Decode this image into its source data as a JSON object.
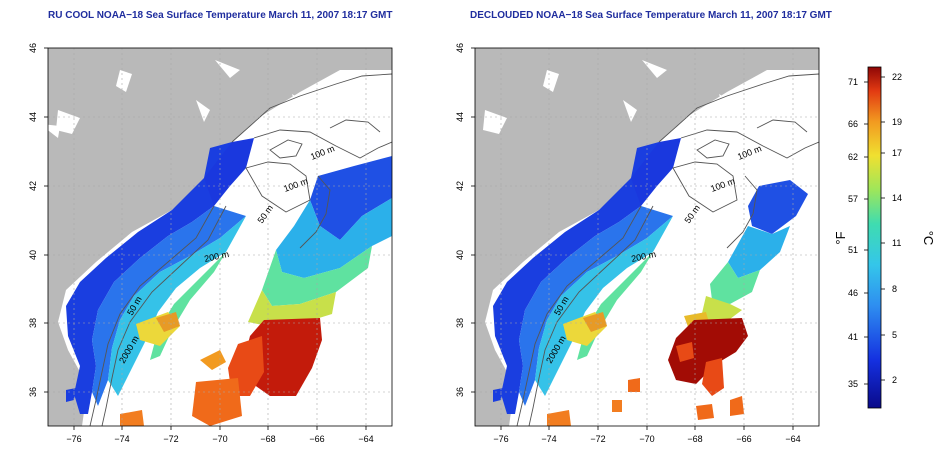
{
  "titles": {
    "left": "RU COOL NOAA−18 Sea Surface Temperature March 11, 2007 18:17 GMT",
    "right": "DECLOUDED NOAA−18 Sea Surface Temperature March 11, 2007 18:17 GMT"
  },
  "axes": {
    "x_ticks": [
      "−76",
      "−74",
      "−72",
      "−70",
      "−68",
      "−66",
      "−64"
    ],
    "y_ticks": [
      "36",
      "38",
      "40",
      "42",
      "44",
      "46"
    ]
  },
  "contours": {
    "left": [
      "100 m",
      "100 m",
      "50 m",
      "200 m",
      "50 m",
      "2000 m"
    ],
    "right": [
      "100 m",
      "100 m",
      "50 m",
      "200 m",
      "50 m",
      "2000 m"
    ]
  },
  "colorbar": {
    "fahrenheit_label": "°F",
    "celsius_label": "°C",
    "fahrenheit_ticks": [
      "71",
      "66",
      "62",
      "57",
      "51",
      "46",
      "41",
      "35"
    ],
    "celsius_ticks": [
      "22",
      "19",
      "17",
      "14",
      "11",
      "8",
      "5",
      "2"
    ]
  },
  "colors": {
    "land": "#b9b9b9",
    "cold": "#1426d8",
    "cool": "#3aa9ec",
    "mid": "#3fdcb0",
    "warm": "#e8e23a",
    "hot": "#ee5a1a",
    "hottest": "#a20c05"
  }
}
